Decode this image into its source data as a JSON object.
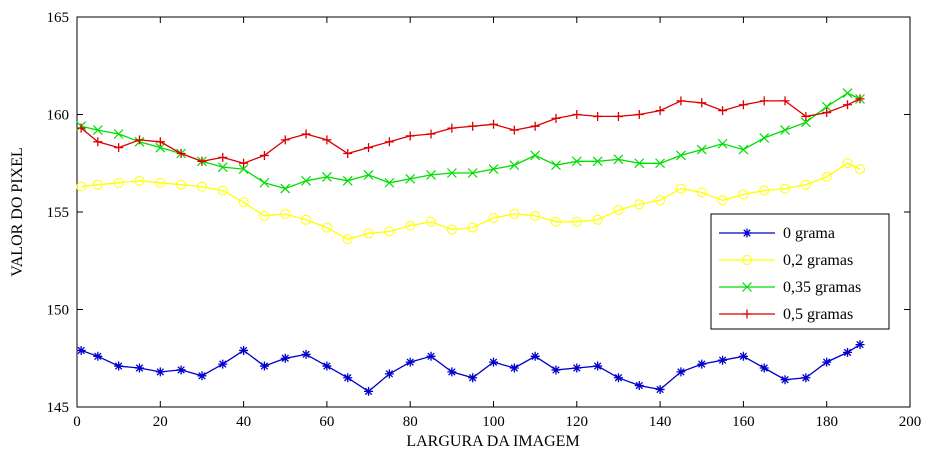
{
  "chart_data": {
    "type": "line",
    "title": "",
    "xlabel": "LARGURA DA IMAGEM",
    "ylabel": "VALOR DO PIXEL",
    "xlim": [
      0,
      200
    ],
    "ylim": [
      145,
      165
    ],
    "xticks": [
      0,
      20,
      40,
      60,
      80,
      100,
      120,
      140,
      160,
      180,
      200
    ],
    "yticks": [
      145,
      150,
      155,
      160,
      165
    ],
    "grid": false,
    "legend_position": "right",
    "x": [
      1,
      5,
      10,
      15,
      20,
      25,
      30,
      35,
      40,
      45,
      50,
      55,
      60,
      65,
      70,
      75,
      80,
      85,
      90,
      95,
      100,
      105,
      110,
      115,
      120,
      125,
      130,
      135,
      140,
      145,
      150,
      155,
      160,
      165,
      170,
      175,
      180,
      185,
      188
    ],
    "series": [
      {
        "name": "0 grama",
        "color": "#0000cc",
        "marker": "star",
        "values": [
          147.9,
          147.6,
          147.1,
          147.0,
          146.8,
          146.9,
          146.6,
          147.2,
          147.9,
          147.1,
          147.5,
          147.7,
          147.1,
          146.5,
          145.8,
          146.7,
          147.3,
          147.6,
          146.8,
          146.5,
          147.3,
          147.0,
          147.6,
          146.9,
          147.0,
          147.1,
          146.5,
          146.1,
          145.9,
          146.8,
          147.2,
          147.4,
          147.6,
          147.0,
          146.4,
          146.5,
          147.3,
          147.8,
          148.2
        ]
      },
      {
        "name": "0,2 gramas",
        "color": "#ffff00",
        "marker": "circle",
        "values": [
          156.3,
          156.4,
          156.5,
          156.6,
          156.5,
          156.4,
          156.3,
          156.1,
          155.5,
          154.8,
          154.9,
          154.6,
          154.2,
          153.6,
          153.9,
          154.0,
          154.3,
          154.5,
          154.1,
          154.2,
          154.7,
          154.9,
          154.8,
          154.5,
          154.5,
          154.6,
          155.1,
          155.4,
          155.6,
          156.2,
          156.0,
          155.6,
          155.9,
          156.1,
          156.2,
          156.4,
          156.8,
          157.5,
          157.2
        ]
      },
      {
        "name": "0,35 gramas",
        "color": "#00dd00",
        "marker": "x",
        "values": [
          159.4,
          159.2,
          159.0,
          158.6,
          158.3,
          158.0,
          157.6,
          157.3,
          157.2,
          156.5,
          156.2,
          156.6,
          156.8,
          156.6,
          156.9,
          156.5,
          156.7,
          156.9,
          157.0,
          157.0,
          157.2,
          157.4,
          157.9,
          157.4,
          157.6,
          157.6,
          157.7,
          157.5,
          157.5,
          157.9,
          158.2,
          158.5,
          158.2,
          158.8,
          159.2,
          159.6,
          160.4,
          161.1,
          160.8
        ]
      },
      {
        "name": "0,5 gramas",
        "color": "#dd0000",
        "marker": "plus",
        "values": [
          159.3,
          158.6,
          158.3,
          158.7,
          158.6,
          158.0,
          157.6,
          157.8,
          157.5,
          157.9,
          158.7,
          159.0,
          158.7,
          158.0,
          158.3,
          158.6,
          158.9,
          159.0,
          159.3,
          159.4,
          159.5,
          159.2,
          159.4,
          159.8,
          160.0,
          159.9,
          159.9,
          160.0,
          160.2,
          160.7,
          160.6,
          160.2,
          160.5,
          160.7,
          160.7,
          159.9,
          160.1,
          160.5,
          160.8
        ]
      }
    ]
  }
}
